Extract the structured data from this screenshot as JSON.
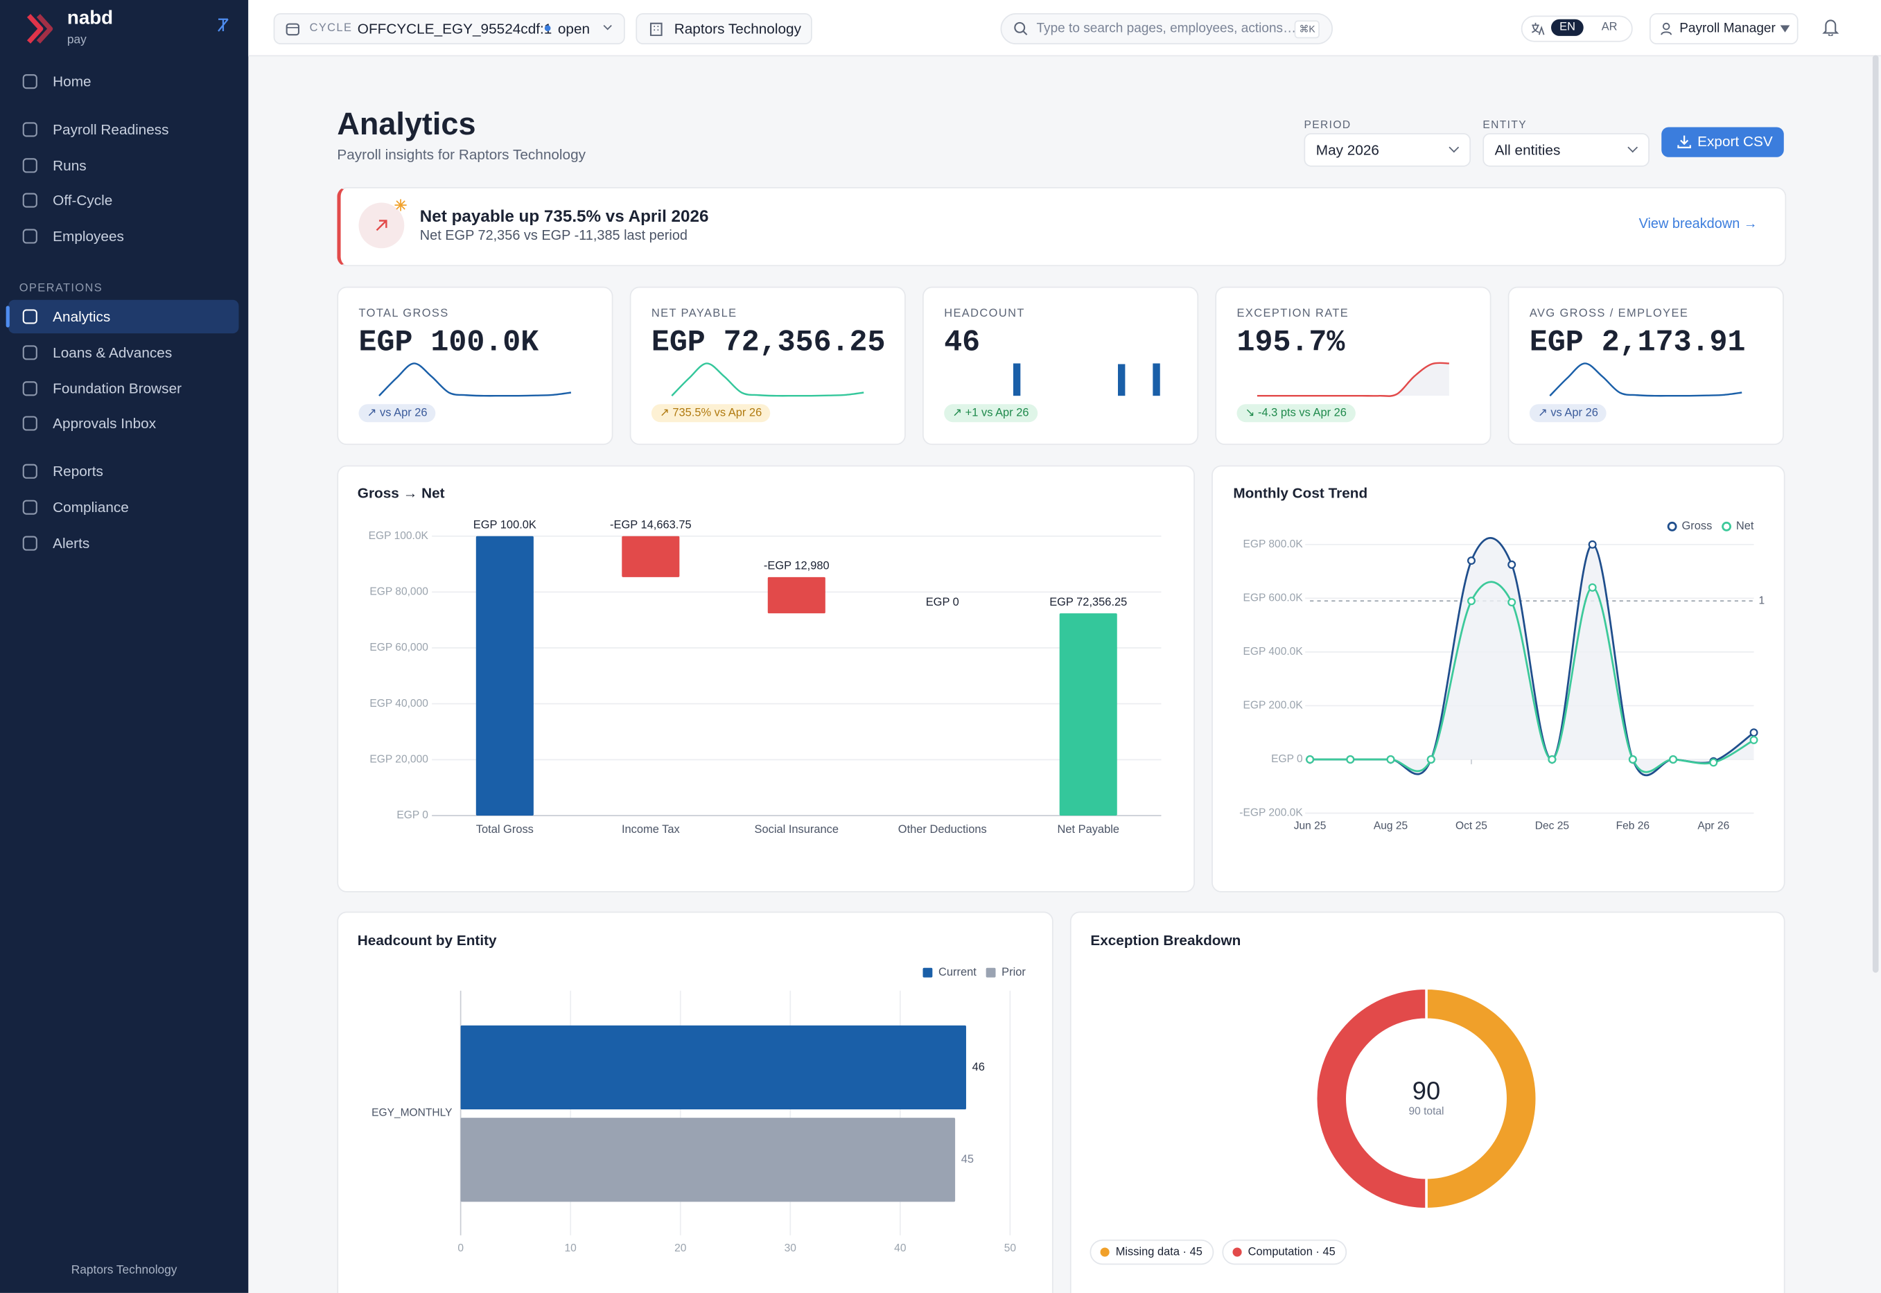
{
  "sidebar": {
    "brand": "nabd",
    "brand_sub": "pay",
    "nav": [
      "Home",
      "Payroll Readiness",
      "Runs",
      "Off-Cycle",
      "Employees"
    ],
    "section": "OPERATIONS",
    "ops": [
      "Analytics",
      "Loans & Advances",
      "Foundation Browser",
      "Approvals Inbox"
    ],
    "more": [
      "Reports",
      "Compliance",
      "Alerts"
    ],
    "footer": "Raptors Technology"
  },
  "topbar": {
    "cycle_label": "CYCLE",
    "cycle": "OFFCYCLE_EGY_95524cdf:1",
    "status": "open",
    "company": "Raptors Technology",
    "search": "Type to search pages, employees, actions…",
    "shortcut": "⌘K",
    "languages": [
      "EN",
      "AR"
    ],
    "role": "Payroll Manager"
  },
  "header": {
    "title": "Analytics",
    "subtitle": "Payroll insights for Raptors Technology",
    "period_label": "PERIOD",
    "period": "May 2026",
    "entity_label": "ENTITY",
    "entity": "All entities",
    "export": "Export CSV"
  },
  "banner": {
    "title": "Net payable up 735.5% vs April 2026",
    "detail": "Net EGP 72,356 vs EGP -11,385 last period",
    "link": "View breakdown →"
  },
  "kpis": [
    {
      "label": "TOTAL GROSS",
      "value": "EGP 100.0K",
      "delta": "↗ vs Apr 26",
      "tone": "neutral",
      "trend_type": "line",
      "color": "#1a5fa8",
      "trend": [
        0,
        0.55,
        1,
        0.6,
        0.1,
        0.02,
        0,
        0,
        0,
        0.01,
        0.03,
        0.1
      ]
    },
    {
      "label": "NET PAYABLE",
      "value": "EGP 72,356.25",
      "delta": "↗ 735.5% vs Apr 26",
      "tone": "warning",
      "trend_type": "line",
      "color": "#34c79b",
      "trend": [
        0,
        0.55,
        1,
        0.6,
        0.1,
        0.02,
        0,
        0,
        0,
        0.01,
        0.03,
        0.1
      ]
    },
    {
      "label": "HEADCOUNT",
      "value": "46",
      "delta": "↗ +1 vs Apr 26",
      "tone": "positive",
      "trend_type": "bar",
      "color": "#1a5fa8",
      "trend": [
        0,
        0,
        0,
        46,
        0,
        0,
        0,
        0,
        0,
        45,
        0,
        46
      ]
    },
    {
      "label": "EXCEPTION RATE",
      "value": "195.7%",
      "delta": "↘ -4.3 pts vs Apr 26",
      "tone": "positive",
      "trend_type": "area",
      "color": "#e24a4a",
      "trend": [
        0,
        0,
        0,
        0,
        0,
        0,
        0,
        0,
        0.05,
        0.6,
        0.98,
        1
      ]
    },
    {
      "label": "AVG GROSS / EMPLOYEE",
      "value": "EGP 2,173.91",
      "delta": "↗ vs Apr 26",
      "tone": "neutral",
      "trend_type": "line",
      "color": "#1a5fa8",
      "trend": [
        0,
        0.55,
        1,
        0.6,
        0.1,
        0.02,
        0,
        0,
        0,
        0.01,
        0.03,
        0.1
      ]
    }
  ],
  "charts": {
    "gross_to_net": {
      "type": "waterfall",
      "title": "Gross → Net",
      "categories": [
        "Total Gross",
        "Income Tax",
        "Social Insurance",
        "Other Deductions",
        "Net Payable"
      ],
      "values": [
        100000,
        -14663.75,
        -12980,
        0,
        72356.25
      ],
      "value_labels": [
        "EGP 100.0K",
        "-EGP 14,663.75",
        "-EGP 12,980",
        "EGP 0",
        "EGP 72,356.25"
      ],
      "colors": [
        "#1a5fa8",
        "#e24a4a",
        "#e24a4a",
        "#e24a4a",
        "#34c79b"
      ],
      "ylim": [
        0,
        100000
      ],
      "yticks": [
        {
          "value": 0,
          "label": "EGP 0"
        },
        {
          "value": 20000,
          "label": "EGP 20,000"
        },
        {
          "value": 40000,
          "label": "EGP 40,000"
        },
        {
          "value": 60000,
          "label": "EGP 60,000"
        },
        {
          "value": 80000,
          "label": "EGP 80,000"
        },
        {
          "value": 100000,
          "label": "EGP 100.0K"
        }
      ],
      "grid": true
    },
    "cost_trend": {
      "type": "line",
      "title": "Monthly Cost Trend",
      "x": [
        "Jun 25",
        null,
        "Aug 25",
        null,
        "Oct 25",
        null,
        "Dec 25",
        null,
        "Feb 26",
        null,
        "Apr 26",
        null
      ],
      "series": [
        {
          "name": "Gross",
          "color": "#1f4e8c",
          "values": [
            0,
            0,
            0,
            0,
            740000,
            725000,
            0,
            800000,
            0,
            0,
            -7000,
            100000
          ]
        },
        {
          "name": "Net",
          "color": "#3cc99a",
          "values": [
            0,
            0,
            0,
            0,
            590000,
            585000,
            0,
            640000,
            0,
            0,
            -11385,
            72356
          ]
        }
      ],
      "ylim": [
        -200000,
        800000
      ],
      "yticks": [
        {
          "value": -200000,
          "label": "-EGP 200.0K"
        },
        {
          "value": 0,
          "label": "EGP 0"
        },
        {
          "value": 200000,
          "label": "EGP 200.0K"
        },
        {
          "value": 400000,
          "label": "EGP 400.0K"
        },
        {
          "value": 600000,
          "label": "EGP 600.0K"
        },
        {
          "value": 800000,
          "label": "EGP 800.0K"
        }
      ],
      "reference": {
        "value": 590000,
        "label": "1"
      },
      "grid": true,
      "legend": "top-right"
    },
    "headcount": {
      "type": "hbar",
      "title": "Headcount by Entity",
      "categories": [
        "EGY_MONTHLY"
      ],
      "series": [
        {
          "name": "Current",
          "color": "#1a5fa8",
          "values": [
            46
          ]
        },
        {
          "name": "Prior",
          "color": "#9aa3b2",
          "values": [
            45
          ]
        }
      ],
      "xlim": [
        0,
        50
      ],
      "xticks": [
        0,
        10,
        20,
        30,
        40,
        50
      ],
      "grid": true,
      "legend": "top-right"
    },
    "exceptions": {
      "type": "donut",
      "title": "Exception Breakdown",
      "values": [
        45,
        45
      ],
      "colors": [
        "#f0a02a",
        "#e24a4a"
      ],
      "legend_labels": [
        "Missing data · 45",
        "Computation · 45"
      ],
      "total": 90,
      "total_label": "90 total"
    }
  }
}
